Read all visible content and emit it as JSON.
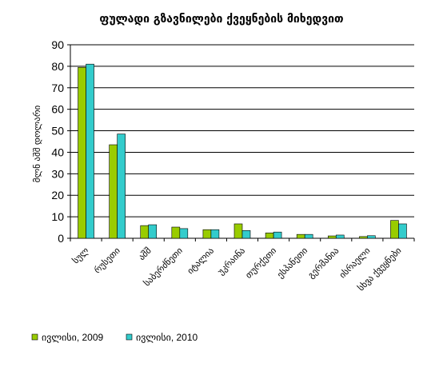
{
  "chart_data": {
    "type": "bar",
    "title": "ფულადი გზავნილები ქვეყნების მიხედვით",
    "xlabel": "",
    "ylabel": "მლნ აშშ დოლარი",
    "ylim": [
      0,
      90
    ],
    "yticks": [
      0,
      10,
      20,
      30,
      40,
      50,
      60,
      70,
      80,
      90
    ],
    "grid": "horizontal",
    "legend_position": "bottom-left",
    "categories": [
      "სულ",
      "რუსეთი",
      "აშშ",
      "საბერძნეთი",
      "იტალია",
      "უკრაინა",
      "თურქეთი",
      "ესპანეთი",
      "გერმანია",
      "ისრაელი",
      "სხვა ქვეყნები"
    ],
    "series": [
      {
        "name": "ივლისი, 2009",
        "color": "#99CC00",
        "values": [
          79.5,
          43.5,
          5.9,
          5.2,
          4.0,
          6.7,
          2.5,
          1.8,
          1.1,
          0.8,
          8.3
        ]
      },
      {
        "name": "ივლისი, 2010",
        "color": "#33CCCC",
        "values": [
          81.0,
          48.5,
          6.3,
          4.5,
          4.0,
          3.6,
          2.9,
          1.8,
          1.5,
          1.2,
          6.7
        ]
      }
    ]
  }
}
